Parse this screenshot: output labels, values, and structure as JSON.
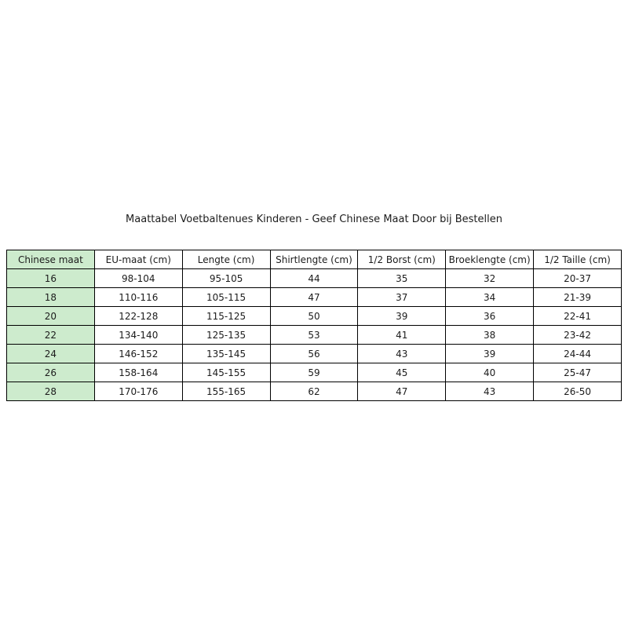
{
  "title": "Maattabel Voetbaltenues Kinderen - Geef Chinese Maat Door bij Bestellen",
  "colors": {
    "background": "#ffffff",
    "first_column_bg": "#cdebcd",
    "cell_bg": "#ffffff",
    "border": "#000000",
    "text": "#1c1c1c"
  },
  "chart_data": {
    "type": "table",
    "title": "Maattabel Voetbaltenues Kinderen - Geef Chinese Maat Door bij Bestellen",
    "columns": [
      "Chinese maat",
      "EU-maat (cm)",
      "Lengte (cm)",
      "Shirtlengte (cm)",
      "1/2 Borst (cm)",
      "Broeklengte (cm)",
      "1/2 Taille (cm)"
    ],
    "rows": [
      [
        "16",
        "98-104",
        "95-105",
        "44",
        "35",
        "32",
        "20-37"
      ],
      [
        "18",
        "110-116",
        "105-115",
        "47",
        "37",
        "34",
        "21-39"
      ],
      [
        "20",
        "122-128",
        "115-125",
        "50",
        "39",
        "36",
        "22-41"
      ],
      [
        "22",
        "134-140",
        "125-135",
        "53",
        "41",
        "38",
        "23-42"
      ],
      [
        "24",
        "146-152",
        "135-145",
        "56",
        "43",
        "39",
        "24-44"
      ],
      [
        "26",
        "158-164",
        "145-155",
        "59",
        "45",
        "40",
        "25-47"
      ],
      [
        "28",
        "170-176",
        "155-165",
        "62",
        "47",
        "43",
        "26-50"
      ]
    ],
    "layout": {
      "highlighted_column": 0,
      "grid": true,
      "legend": "none"
    }
  }
}
